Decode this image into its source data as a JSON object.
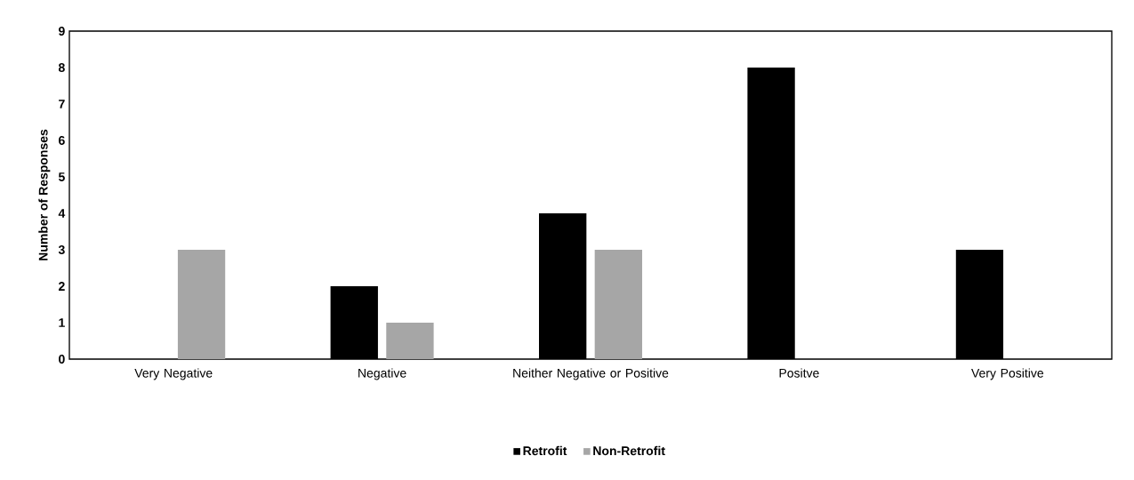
{
  "chart_data": {
    "type": "bar",
    "ylabel": "Number of Responses",
    "categories": [
      "Very Negative",
      "Negative",
      "Neither Negative or Positive",
      "Positve",
      "Very Positive"
    ],
    "series": [
      {
        "name": "Retrofit",
        "color": "#000000",
        "values": [
          0,
          2,
          4,
          8,
          3
        ]
      },
      {
        "name": "Non-Retrofit",
        "color": "#a6a6a6",
        "values": [
          3,
          1,
          3,
          0,
          0
        ]
      }
    ],
    "ylim": [
      0,
      9
    ],
    "yticks": [
      0,
      1,
      2,
      3,
      4,
      5,
      6,
      7,
      8,
      9
    ],
    "grid": false,
    "legend": "bottom"
  }
}
